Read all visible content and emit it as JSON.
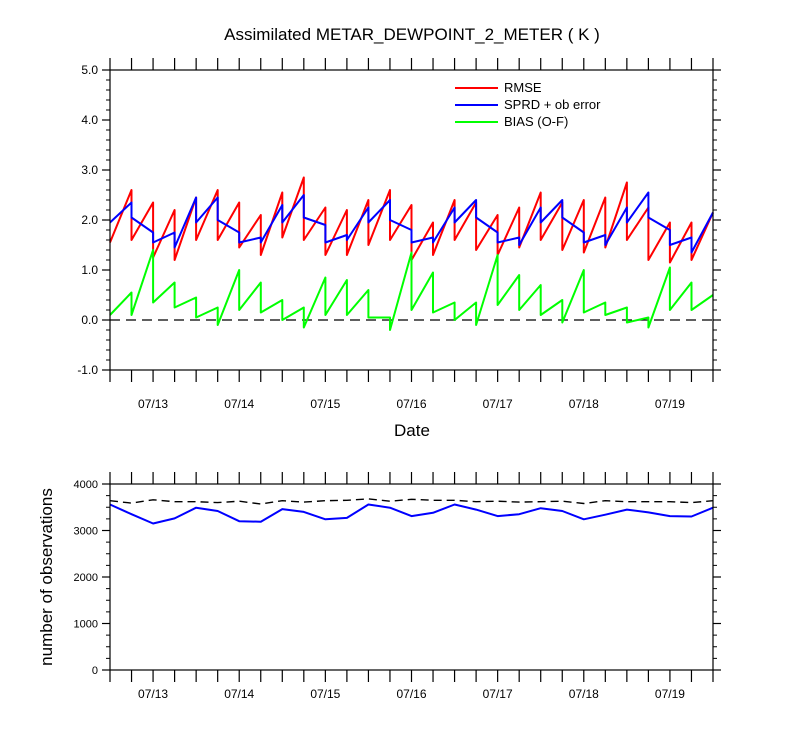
{
  "chart_data": [
    {
      "type": "line",
      "title": "Assimilated METAR_DEWPOINT_2_METER ( K )",
      "xlabel": "Date",
      "ylabel": "",
      "x_tick_labels": [
        "07/13",
        "07/14",
        "07/15",
        "07/16",
        "07/17",
        "07/18",
        "07/19"
      ],
      "y_tick_labels": [
        "-1.0",
        "0.0",
        "1.0",
        "2.0",
        "3.0",
        "4.0",
        "5.0"
      ],
      "ylim": [
        -1.0,
        5.0
      ],
      "x_range_days": [
        0,
        7
      ],
      "zero_line": "dashed",
      "grid": false,
      "legend_position": "top-right",
      "series": [
        {
          "name": "RMSE",
          "color": "#ff0000",
          "x": [
            0,
            0.25,
            0.25,
            0.5,
            0.5,
            0.75,
            0.75,
            1.0,
            1.0,
            1.25,
            1.25,
            1.5,
            1.5,
            1.75,
            1.75,
            2.0,
            2.0,
            2.25,
            2.25,
            2.5,
            2.5,
            2.75,
            2.75,
            3.0,
            3.0,
            3.25,
            3.25,
            3.5,
            3.5,
            3.75,
            3.75,
            4.0,
            4.0,
            4.25,
            4.25,
            4.5,
            4.5,
            4.75,
            4.75,
            5.0,
            5.0,
            5.25,
            5.25,
            5.5,
            5.5,
            5.75,
            5.75,
            6.0,
            6.0,
            6.25,
            6.25,
            6.5,
            6.5,
            6.75,
            6.75,
            7.0
          ],
          "values": [
            1.55,
            2.6,
            1.6,
            2.35,
            1.25,
            2.2,
            1.2,
            2.45,
            1.6,
            2.6,
            1.6,
            2.35,
            1.45,
            2.1,
            1.3,
            2.55,
            1.65,
            2.85,
            1.6,
            2.25,
            1.3,
            2.2,
            1.3,
            2.4,
            1.5,
            2.6,
            1.6,
            2.3,
            1.2,
            1.95,
            1.3,
            2.4,
            1.6,
            2.35,
            1.4,
            2.1,
            1.3,
            2.25,
            1.45,
            2.55,
            1.6,
            2.35,
            1.4,
            2.4,
            1.35,
            2.45,
            1.45,
            2.75,
            1.6,
            2.25,
            1.2,
            1.95,
            1.15,
            1.95,
            1.2,
            2.15
          ]
        },
        {
          "name": "SPRD + ob error",
          "color": "#0000ff",
          "x": [
            0,
            0.25,
            0.25,
            0.5,
            0.5,
            0.75,
            0.75,
            1.0,
            1.0,
            1.25,
            1.25,
            1.5,
            1.5,
            1.75,
            1.75,
            2.0,
            2.0,
            2.25,
            2.25,
            2.5,
            2.5,
            2.75,
            2.75,
            3.0,
            3.0,
            3.25,
            3.25,
            3.5,
            3.5,
            3.75,
            3.75,
            4.0,
            4.0,
            4.25,
            4.25,
            4.5,
            4.5,
            4.75,
            4.75,
            5.0,
            5.0,
            5.25,
            5.25,
            5.5,
            5.5,
            5.75,
            5.75,
            6.0,
            6.0,
            6.25,
            6.25,
            6.5,
            6.5,
            6.75,
            6.75,
            7.0
          ],
          "values": [
            1.95,
            2.35,
            2.05,
            1.75,
            1.55,
            1.75,
            1.45,
            2.45,
            1.95,
            2.45,
            2.0,
            1.75,
            1.55,
            1.65,
            1.55,
            2.3,
            1.95,
            2.5,
            2.05,
            1.9,
            1.55,
            1.7,
            1.6,
            2.25,
            1.95,
            2.4,
            2.0,
            1.8,
            1.55,
            1.65,
            1.55,
            2.25,
            1.95,
            2.4,
            2.05,
            1.75,
            1.55,
            1.65,
            1.5,
            2.25,
            1.95,
            2.4,
            2.05,
            1.75,
            1.55,
            1.7,
            1.5,
            2.25,
            1.95,
            2.55,
            2.05,
            1.8,
            1.5,
            1.65,
            1.35,
            2.15
          ]
        },
        {
          "name": "BIAS (O-F)",
          "color": "#00ff00",
          "x": [
            0,
            0.25,
            0.25,
            0.5,
            0.5,
            0.75,
            0.75,
            1.0,
            1.0,
            1.25,
            1.25,
            1.5,
            1.5,
            1.75,
            1.75,
            2.0,
            2.0,
            2.25,
            2.25,
            2.5,
            2.5,
            2.75,
            2.75,
            3.0,
            3.0,
            3.25,
            3.25,
            3.5,
            3.5,
            3.75,
            3.75,
            4.0,
            4.0,
            4.25,
            4.25,
            4.5,
            4.5,
            4.75,
            4.75,
            5.0,
            5.0,
            5.25,
            5.25,
            5.5,
            5.5,
            5.75,
            5.75,
            6.0,
            6.0,
            6.25,
            6.25,
            6.5,
            6.5,
            6.75,
            6.75,
            7.0
          ],
          "values": [
            0.1,
            0.55,
            0.1,
            1.4,
            0.35,
            0.75,
            0.25,
            0.45,
            0.05,
            0.25,
            -0.1,
            1.0,
            0.2,
            0.75,
            0.15,
            0.4,
            0.0,
            0.25,
            -0.15,
            0.85,
            0.1,
            0.8,
            0.1,
            0.6,
            0.05,
            0.05,
            -0.2,
            1.35,
            0.2,
            0.95,
            0.15,
            0.35,
            0.0,
            0.35,
            -0.1,
            1.3,
            0.3,
            0.9,
            0.2,
            0.7,
            0.1,
            0.4,
            -0.05,
            1.0,
            0.15,
            0.35,
            0.1,
            0.25,
            -0.05,
            0.05,
            -0.15,
            1.05,
            0.2,
            0.75,
            0.2,
            0.5
          ]
        }
      ]
    },
    {
      "type": "line",
      "title": "",
      "xlabel": "",
      "ylabel": "number of observations",
      "x_tick_labels": [
        "07/13",
        "07/14",
        "07/15",
        "07/16",
        "07/17",
        "07/18",
        "07/19"
      ],
      "y_tick_labels": [
        "0",
        "1000",
        "2000",
        "3000",
        "4000"
      ],
      "ylim": [
        0,
        4000
      ],
      "x_range_days": [
        0,
        7
      ],
      "grid": false,
      "series": [
        {
          "color": "#0000ff",
          "style": "solid",
          "x": [
            0,
            0.25,
            0.5,
            0.75,
            1.0,
            1.25,
            1.5,
            1.75,
            2.0,
            2.25,
            2.5,
            2.75,
            3.0,
            3.25,
            3.5,
            3.75,
            4.0,
            4.25,
            4.5,
            4.75,
            5.0,
            5.25,
            5.5,
            5.75,
            6.0,
            6.25,
            6.5,
            6.75,
            7.0
          ],
          "values": [
            3560,
            3350,
            3150,
            3260,
            3490,
            3420,
            3200,
            3190,
            3460,
            3400,
            3240,
            3270,
            3560,
            3490,
            3310,
            3380,
            3560,
            3450,
            3310,
            3350,
            3480,
            3420,
            3240,
            3340,
            3450,
            3390,
            3310,
            3300,
            3490
          ]
        },
        {
          "color": "#000000",
          "style": "dashed",
          "x": [
            0,
            0.25,
            0.5,
            0.75,
            1.0,
            1.25,
            1.5,
            1.75,
            2.0,
            2.25,
            2.5,
            2.75,
            3.0,
            3.25,
            3.5,
            3.75,
            4.0,
            4.25,
            4.5,
            4.75,
            5.0,
            5.25,
            5.5,
            5.75,
            6.0,
            6.25,
            6.5,
            6.75,
            7.0
          ],
          "values": [
            3640,
            3590,
            3660,
            3620,
            3620,
            3600,
            3630,
            3570,
            3640,
            3610,
            3640,
            3650,
            3680,
            3630,
            3670,
            3650,
            3650,
            3620,
            3630,
            3610,
            3620,
            3630,
            3580,
            3640,
            3620,
            3620,
            3620,
            3600,
            3640
          ]
        }
      ]
    }
  ]
}
